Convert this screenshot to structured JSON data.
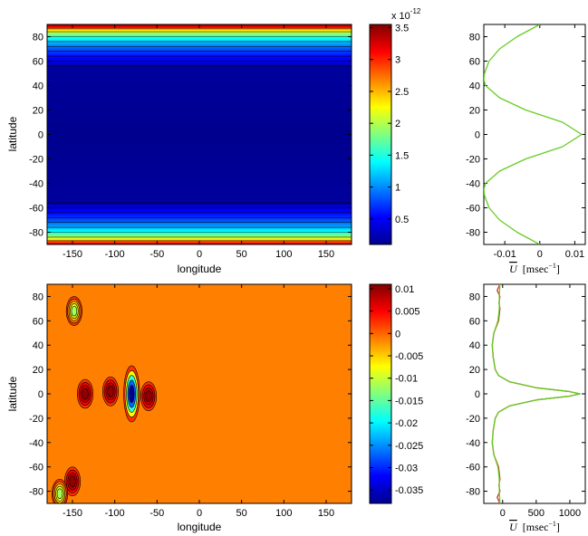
{
  "chart_data": [
    {
      "type": "heatmap",
      "panel": "top-left",
      "xlabel": "longitude",
      "ylabel": "latitude",
      "xlim": [
        -180,
        180
      ],
      "ylim": [
        -90,
        90
      ],
      "xticks": [
        -150,
        -100,
        -50,
        0,
        50,
        100,
        150
      ],
      "yticks": [
        -80,
        -60,
        -40,
        -20,
        0,
        20,
        40,
        60,
        80
      ],
      "description_of_field": "zonally uniform bands; ~0.2e-12 over |lat|<56, rising toward the poles to ~3.5e-12",
      "profile_lat": [
        0,
        56,
        60,
        65,
        70,
        75,
        80,
        85,
        88,
        90
      ],
      "profile_val": [
        0.15,
        0.2,
        0.45,
        0.6,
        0.8,
        1.1,
        1.5,
        2.2,
        3.0,
        3.5
      ],
      "colorbar": {
        "range": [
          0.1,
          3.55
        ],
        "ticks": [
          "0.5",
          "1",
          "1.5",
          "2",
          "2.5",
          "3",
          "3.5"
        ],
        "tick_values": [
          0.5,
          1,
          1.5,
          2,
          2.5,
          3,
          3.5
        ],
        "exponent_label": "x 10",
        "exponent": "-12"
      }
    },
    {
      "type": "line",
      "panel": "top-right",
      "xlabel_symbol": "U",
      "xlabel_units": "[msec",
      "xlabel_exp": "−1",
      "xlabel_close": "]",
      "xlim": [
        -0.016,
        0.013
      ],
      "ylim": [
        -90,
        90
      ],
      "xticks": [
        "-0.01",
        "0",
        "0.01"
      ],
      "xtick_values": [
        -0.01,
        0,
        0.01
      ],
      "yticks": [
        -80,
        -60,
        -40,
        -20,
        0,
        20,
        40,
        60,
        80
      ],
      "series": [
        {
          "color": "#66cc22",
          "lat": [
            90,
            80,
            70,
            60,
            50,
            45,
            40,
            30,
            20,
            10,
            0,
            -10,
            -20,
            -30,
            -40,
            -45,
            -50,
            -60,
            -70,
            -80,
            -90
          ],
          "u": [
            0.0,
            -0.0065,
            -0.0115,
            -0.0145,
            -0.0158,
            -0.016,
            -0.0155,
            -0.0115,
            -0.004,
            0.0065,
            0.012,
            0.0065,
            -0.004,
            -0.0115,
            -0.0155,
            -0.016,
            -0.0158,
            -0.0145,
            -0.0115,
            -0.0065,
            0.0
          ]
        }
      ]
    },
    {
      "type": "heatmap",
      "panel": "bottom-left",
      "xlabel": "longitude",
      "ylabel": "latitude",
      "xlim": [
        -180,
        180
      ],
      "ylim": [
        -90,
        90
      ],
      "xticks": [
        -150,
        -100,
        -50,
        0,
        50,
        100,
        150
      ],
      "yticks": [
        -80,
        -60,
        -40,
        -20,
        0,
        20,
        40,
        60,
        80
      ],
      "background_value": 0.0025,
      "features": [
        {
          "lon": -80,
          "lat": 0,
          "value": -0.037,
          "kind": "minimum"
        },
        {
          "lon": -105,
          "lat": 2,
          "value": 0.01,
          "kind": "maximum"
        },
        {
          "lon": -135,
          "lat": 0,
          "value": 0.01,
          "kind": "maximum"
        },
        {
          "lon": -60,
          "lat": -2,
          "value": 0.01,
          "kind": "maximum"
        },
        {
          "lon": -148,
          "lat": 68,
          "value": -0.012,
          "kind": "minimum"
        },
        {
          "lon": -150,
          "lat": -72,
          "value": 0.01,
          "kind": "maximum"
        },
        {
          "lon": -165,
          "lat": -82,
          "value": -0.012,
          "kind": "minimum"
        }
      ],
      "colorbar": {
        "range": [
          -0.038,
          0.011
        ],
        "ticks": [
          "0.01",
          "0.005",
          "0",
          "-0.005",
          "-0.01",
          "-0.015",
          "-0.02",
          "-0.025",
          "-0.03",
          "-0.035"
        ],
        "tick_values": [
          0.01,
          0.005,
          0,
          -0.005,
          -0.01,
          -0.015,
          -0.02,
          -0.025,
          -0.03,
          -0.035
        ]
      }
    },
    {
      "type": "line",
      "panel": "bottom-right",
      "xlabel_symbol": "U",
      "xlabel_units": "[msec",
      "xlabel_exp": "−1",
      "xlabel_close": "]",
      "xlim": [
        -280,
        1230
      ],
      "ylim": [
        -90,
        90
      ],
      "xticks": [
        "0",
        "500",
        "1000"
      ],
      "xtick_values": [
        0,
        500,
        1000
      ],
      "yticks": [
        -80,
        -60,
        -40,
        -20,
        0,
        20,
        40,
        60,
        80
      ],
      "series": [
        {
          "color": "#cc3322",
          "lat": [
            90,
            85,
            80,
            75,
            70,
            60,
            50,
            40,
            30,
            20,
            15,
            10,
            5,
            2,
            0,
            -2,
            -5,
            -10,
            -15,
            -20,
            -30,
            -40,
            -50,
            -60,
            -70,
            -75,
            -80,
            -85,
            -90
          ],
          "u": [
            -40,
            -80,
            -40,
            -55,
            -40,
            -60,
            -130,
            -155,
            -140,
            -110,
            -60,
            100,
            500,
            980,
            1150,
            980,
            500,
            100,
            -60,
            -110,
            -140,
            -155,
            -130,
            -60,
            -40,
            -55,
            -40,
            -80,
            -40
          ]
        },
        {
          "color": "#66cc22",
          "lat": [
            90,
            80,
            70,
            60,
            50,
            40,
            30,
            20,
            15,
            10,
            5,
            2,
            0,
            -2,
            -5,
            -10,
            -15,
            -20,
            -30,
            -40,
            -50,
            -60,
            -70,
            -80,
            -90
          ],
          "u": [
            -40,
            -50,
            -50,
            -70,
            -130,
            -155,
            -140,
            -110,
            -60,
            100,
            500,
            980,
            1150,
            980,
            500,
            100,
            -60,
            -110,
            -140,
            -155,
            -130,
            -70,
            -50,
            -50,
            -40
          ]
        }
      ]
    }
  ]
}
